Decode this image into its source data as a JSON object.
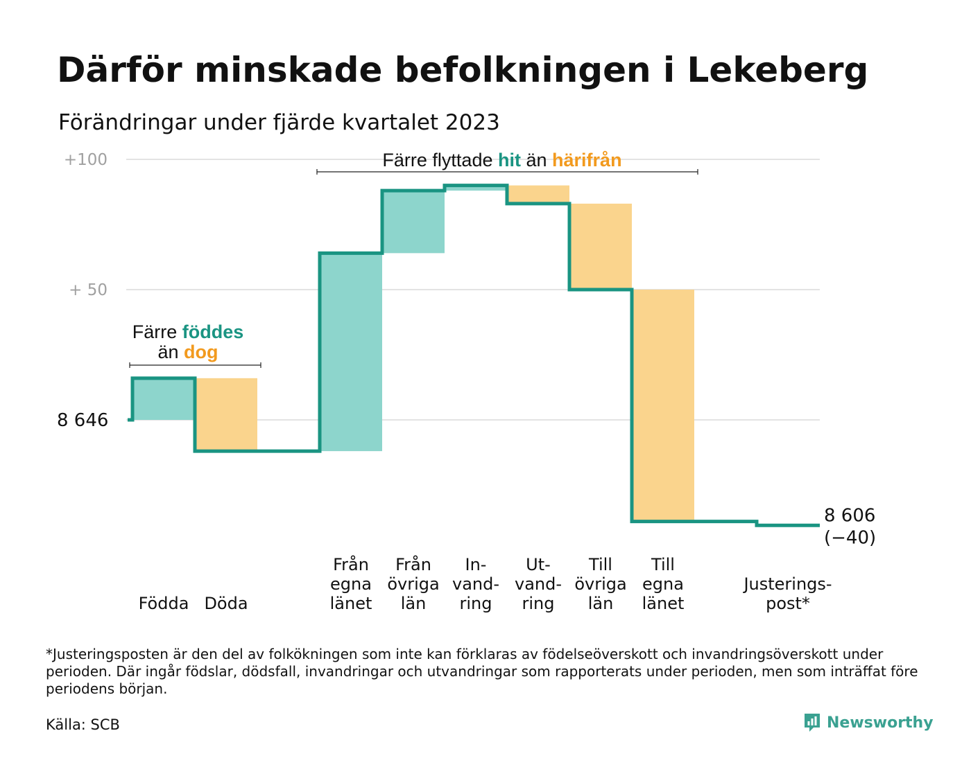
{
  "title": "Därför minskade befolkningen i Lekeberg",
  "subtitle": "Förändringar under fjärde kvartalet 2023",
  "colors": {
    "increase": "#8dd5cc",
    "decrease": "#fad48d",
    "line": "#1a9482",
    "grid": "#e3e3e3",
    "accent_teal": "#1a9482",
    "accent_orange": "#f29a1e"
  },
  "chart_data": {
    "type": "waterfall",
    "start_value": 8646,
    "start_label": "8  646",
    "end_value": 8606,
    "end_label": "8 606",
    "end_change_label": "(−40)",
    "y_ticks": [
      {
        "label": "+100",
        "offset": 100
      },
      {
        "label": "+  50",
        "offset": 50
      }
    ],
    "ylim_offset": [
      -42,
      100
    ],
    "grid": true,
    "steps": [
      {
        "label_lines": [
          "Födda"
        ],
        "change": 16,
        "kind": "increase"
      },
      {
        "label_lines": [
          "Döda"
        ],
        "change": -28,
        "kind": "decrease"
      },
      {
        "label_lines": [],
        "change": 0,
        "kind": "none"
      },
      {
        "label_lines": [
          "Från",
          "egna",
          "länet"
        ],
        "change": 76,
        "kind": "increase"
      },
      {
        "label_lines": [
          "Från",
          "övriga",
          "län"
        ],
        "change": 24,
        "kind": "increase"
      },
      {
        "label_lines": [
          "In-",
          "vand-",
          "ring"
        ],
        "change": 2,
        "kind": "increase"
      },
      {
        "label_lines": [
          "Ut-",
          "vand-",
          "ring"
        ],
        "change": -7,
        "kind": "decrease"
      },
      {
        "label_lines": [
          "Till",
          "övriga",
          "län"
        ],
        "change": -33,
        "kind": "decrease"
      },
      {
        "label_lines": [
          "Till",
          "egna",
          "länet"
        ],
        "change": -89,
        "kind": "decrease"
      },
      {
        "label_lines": [],
        "change": 0,
        "kind": "none"
      },
      {
        "label_lines": [
          "Justerings-",
          "post*"
        ],
        "change": -1.5,
        "kind": "none"
      }
    ],
    "annotations": [
      {
        "name": "births-annotation",
        "line1": [
          {
            "text": "Färre ",
            "style": "plain"
          },
          {
            "text": "föddes",
            "style": "teal"
          }
        ],
        "line2": [
          {
            "text": "än ",
            "style": "plain"
          },
          {
            "text": "dog",
            "style": "orange"
          }
        ]
      },
      {
        "name": "migration-annotation",
        "line1": [
          {
            "text": "Färre flyttade ",
            "style": "plain"
          },
          {
            "text": "hit",
            "style": "teal"
          },
          {
            "text": " än ",
            "style": "plain"
          },
          {
            "text": "härifrån",
            "style": "orange"
          }
        ]
      }
    ]
  },
  "footnote": "*Justeringsposten är den del av folkökningen som inte kan förklaras av födelseöverskott och invandringsöverskott under perioden. Där ingår födslar, dödsfall, invandringar och utvandringar som rapporterats under perioden, men som inträffat före periodens början.",
  "source": "Källa: SCB",
  "logo": {
    "text": "Newsworthy",
    "icon": "newsworthy-logo-icon"
  }
}
